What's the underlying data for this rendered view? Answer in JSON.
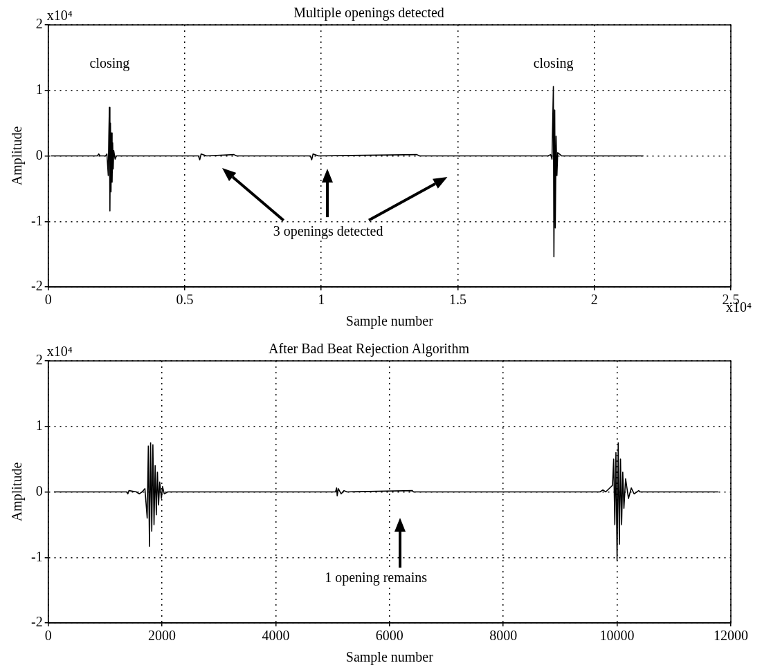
{
  "chart_data": [
    {
      "type": "line",
      "title": "Multiple openings detected",
      "xlabel": "Sample number",
      "ylabel": "Amplitude",
      "xlim": [
        0,
        2.5
      ],
      "xticks": [
        0,
        0.5,
        1,
        1.5,
        2,
        2.5
      ],
      "ylim": [
        -2,
        2
      ],
      "yticks": [
        -2,
        -1,
        0,
        1,
        2
      ],
      "grid": true,
      "legend": false,
      "marker": "none",
      "line_style": "solid",
      "annotations": [
        "x10⁴",
        "x10⁴",
        "closing",
        "closing",
        "3 openings detected"
      ],
      "series": [
        {
          "color": "#000000",
          "x": [
            0.01,
            0.18,
            0.185,
            0.19,
            0.21,
            0.215,
            0.22,
            0.222,
            0.224,
            0.226,
            0.228,
            0.23,
            0.232,
            0.234,
            0.236,
            0.238,
            0.24,
            0.245,
            0.25,
            0.55,
            0.555,
            0.56,
            0.58,
            0.68,
            0.69,
            0.96,
            0.965,
            0.97,
            0.99,
            1.35,
            1.36,
            1.83,
            1.84,
            1.845,
            1.85,
            1.852,
            1.855,
            1.857,
            1.86,
            1.863,
            1.866,
            1.875,
            1.88,
            2.18
          ],
          "values": [
            0,
            0,
            0.03,
            0,
            0,
            0.03,
            -0.3,
            0.3,
            0.74,
            -0.84,
            0.5,
            -0.55,
            0.35,
            -0.4,
            0.2,
            -0.2,
            0.08,
            -0.05,
            0,
            0,
            -0.06,
            0.03,
            0,
            0.02,
            0,
            0,
            -0.06,
            0.03,
            0,
            0.02,
            0,
            0,
            0.02,
            -0.05,
            1.06,
            -1.54,
            0.7,
            -1.1,
            0.3,
            -0.3,
            0.05,
            0.02,
            0,
            0
          ]
        }
      ]
    },
    {
      "type": "line",
      "title": "After Bad Beat Rejection Algorithm",
      "xlabel": "Sample number",
      "ylabel": "Amplitude",
      "xlim": [
        0,
        12000
      ],
      "xticks": [
        0,
        2000,
        4000,
        6000,
        8000,
        10000,
        12000
      ],
      "ylim": [
        -2,
        2
      ],
      "yticks": [
        -2,
        -1,
        0,
        1,
        2
      ],
      "grid": true,
      "legend": false,
      "marker": "none",
      "line_style": "solid",
      "annotations": [
        "x10⁴",
        "1 opening remains"
      ],
      "series": [
        {
          "color": "#000000",
          "x": [
            100,
            1380,
            1400,
            1420,
            1550,
            1600,
            1650,
            1700,
            1740,
            1760,
            1780,
            1800,
            1820,
            1840,
            1860,
            1880,
            1900,
            1920,
            1940,
            1960,
            1990,
            2010,
            2040,
            2100,
            5050,
            5070,
            5080,
            5100,
            5150,
            5200,
            5250,
            6400,
            6420,
            9700,
            9750,
            9800,
            9920,
            9940,
            9960,
            9980,
            10000,
            10020,
            10040,
            10060,
            10080,
            10100,
            10120,
            10150,
            10200,
            10250,
            10300,
            10380,
            10400,
            11780
          ],
          "values": [
            0,
            0,
            -0.03,
            0.02,
            0,
            -0.03,
            0,
            0.05,
            -0.4,
            0.7,
            -0.83,
            0.75,
            -0.6,
            0.72,
            -0.5,
            0.4,
            -0.35,
            0.3,
            -0.2,
            0.15,
            -0.1,
            0.08,
            -0.03,
            0,
            0,
            0.06,
            -0.06,
            0.05,
            -0.03,
            0.02,
            0,
            0.02,
            0,
            0,
            0.03,
            0,
            0.1,
            0.5,
            -0.5,
            0.6,
            -1.05,
            0.75,
            -0.8,
            0.5,
            -0.5,
            0.3,
            -0.25,
            0.2,
            -0.1,
            0.06,
            -0.03,
            0.02,
            0,
            0
          ]
        }
      ]
    }
  ]
}
